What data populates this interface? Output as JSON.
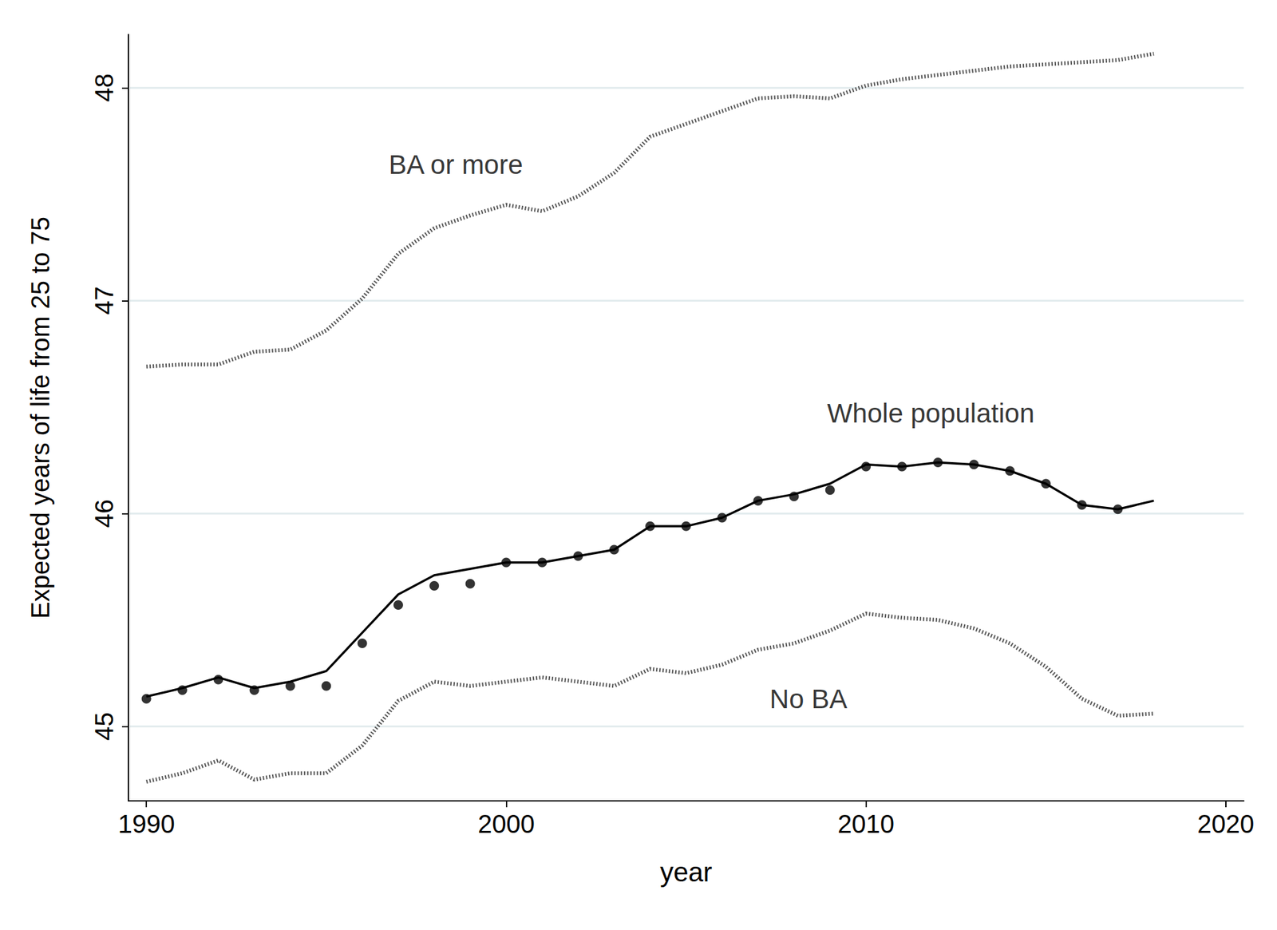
{
  "chart_data": {
    "type": "line",
    "x_label": "year",
    "y_label": "Expected years of life from 25 to 75",
    "xlim": [
      1989.5,
      2020.5
    ],
    "xticks": [
      1990,
      2000,
      2010,
      2020
    ],
    "ylim": [
      44.65,
      48.25
    ],
    "yticks": [
      45,
      46,
      47,
      48
    ],
    "grid": true,
    "series": [
      {
        "name": "BA or more",
        "type": "line",
        "line_style": "dotted",
        "color": "#555555",
        "x": [
          1990,
          1991,
          1992,
          1993,
          1994,
          1995,
          1996,
          1997,
          1998,
          1999,
          2000,
          2001,
          2002,
          2003,
          2004,
          2005,
          2006,
          2007,
          2008,
          2009,
          2010,
          2011,
          2012,
          2013,
          2014,
          2015,
          2016,
          2017,
          2018
        ],
        "values": [
          46.69,
          46.7,
          46.7,
          46.76,
          46.77,
          46.86,
          47.01,
          47.22,
          47.34,
          47.4,
          47.45,
          47.42,
          47.49,
          47.6,
          47.77,
          47.83,
          47.89,
          47.95,
          47.96,
          47.95,
          48.01,
          48.04,
          48.06,
          48.08,
          48.1,
          48.11,
          48.12,
          48.13,
          48.16
        ]
      },
      {
        "name": "Whole population",
        "type": "line",
        "line_style": "solid",
        "color": "#000000",
        "x": [
          1990,
          1991,
          1992,
          1993,
          1994,
          1995,
          1996,
          1997,
          1998,
          1999,
          2000,
          2001,
          2002,
          2003,
          2004,
          2005,
          2006,
          2007,
          2008,
          2009,
          2010,
          2011,
          2012,
          2013,
          2014,
          2015,
          2016,
          2017,
          2018
        ],
        "values": [
          45.14,
          45.18,
          45.23,
          45.18,
          45.21,
          45.26,
          45.44,
          45.62,
          45.71,
          45.74,
          45.77,
          45.77,
          45.8,
          45.83,
          45.94,
          45.94,
          45.98,
          46.06,
          46.09,
          46.14,
          46.23,
          46.22,
          46.24,
          46.23,
          46.2,
          46.14,
          46.04,
          46.02,
          46.06
        ]
      },
      {
        "type": "scatter",
        "marker": "circle",
        "color": "#000000",
        "x": [
          1990,
          1991,
          1992,
          1993,
          1994,
          1995,
          1996,
          1997,
          1998,
          1999,
          2000,
          2001,
          2002,
          2003,
          2004,
          2005,
          2006,
          2007,
          2008,
          2009,
          2010,
          2011,
          2012,
          2013,
          2014,
          2015,
          2016,
          2017
        ],
        "values": [
          45.13,
          45.17,
          45.22,
          45.17,
          45.19,
          45.19,
          45.39,
          45.57,
          45.66,
          45.67,
          45.77,
          45.77,
          45.8,
          45.83,
          45.94,
          45.94,
          45.98,
          46.06,
          46.08,
          46.11,
          46.22,
          46.22,
          46.24,
          46.23,
          46.2,
          46.14,
          46.04,
          46.02
        ]
      },
      {
        "name": "No BA",
        "type": "line",
        "line_style": "dotted",
        "color": "#555555",
        "x": [
          1990,
          1991,
          1992,
          1993,
          1994,
          1995,
          1996,
          1997,
          1998,
          1999,
          2000,
          2001,
          2002,
          2003,
          2004,
          2005,
          2006,
          2007,
          2008,
          2009,
          2010,
          2011,
          2012,
          2013,
          2014,
          2015,
          2016,
          2017,
          2018
        ],
        "values": [
          44.74,
          44.78,
          44.84,
          44.75,
          44.78,
          44.78,
          44.91,
          45.12,
          45.21,
          45.19,
          45.21,
          45.23,
          45.21,
          45.19,
          45.27,
          45.25,
          45.29,
          45.36,
          45.39,
          45.45,
          45.53,
          45.51,
          45.5,
          45.46,
          45.39,
          45.28,
          45.13,
          45.05,
          45.06
        ]
      }
    ],
    "annotations": [
      {
        "text": "BA or more",
        "x": 1998.6,
        "y": 47.64
      },
      {
        "text": "Whole population",
        "x": 2011.8,
        "y": 46.47
      },
      {
        "text": "No BA",
        "x": 2008.4,
        "y": 45.13
      }
    ]
  }
}
